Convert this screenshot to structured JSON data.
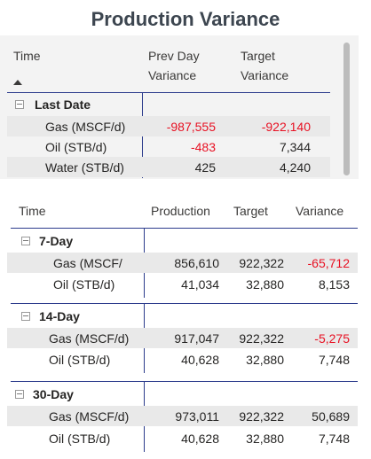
{
  "title": "Production Variance",
  "colors": {
    "negative": "#e81123",
    "divider": "#2b3b8c",
    "band": "#e9e9e9",
    "title": "#3d4650"
  },
  "table1": {
    "headers": {
      "time": "Time",
      "prev_day_line1": "Prev Day",
      "prev_day_line2": "Variance",
      "target_line1": "Target",
      "target_line2": "Variance"
    },
    "group": "Last Date",
    "rows": [
      {
        "label": "Gas (MSCF/d)",
        "prev": "-987,555",
        "target": "-922,140"
      },
      {
        "label": "Oil (STB/d)",
        "prev": "-483",
        "target": "7,344"
      },
      {
        "label": "Water (STB/d)",
        "prev": "425",
        "target": "4,240"
      }
    ]
  },
  "table2": {
    "headers": {
      "time": "Time",
      "production": "Production",
      "target": "Target",
      "variance": "Variance"
    },
    "groups": [
      {
        "name": "7-Day",
        "rows": [
          {
            "label": "Gas (MSCF/",
            "production": "856,610",
            "target": "922,322",
            "variance": "-65,712"
          },
          {
            "label": "Oil (STB/d)",
            "production": "41,034",
            "target": "32,880",
            "variance": "8,153"
          }
        ]
      },
      {
        "name": "14-Day",
        "rows": [
          {
            "label": "Gas (MSCF/d)",
            "production": "917,047",
            "target": "922,322",
            "variance": "-5,275"
          },
          {
            "label": "Oil (STB/d)",
            "production": "40,628",
            "target": "32,880",
            "variance": "7,748"
          }
        ]
      },
      {
        "name": "30-Day",
        "rows": [
          {
            "label": "Gas (MSCF/d)",
            "production": "973,011",
            "target": "922,322",
            "variance": "50,689"
          },
          {
            "label": "Oil (STB/d)",
            "production": "40,628",
            "target": "32,880",
            "variance": "7,748"
          }
        ]
      }
    ]
  }
}
